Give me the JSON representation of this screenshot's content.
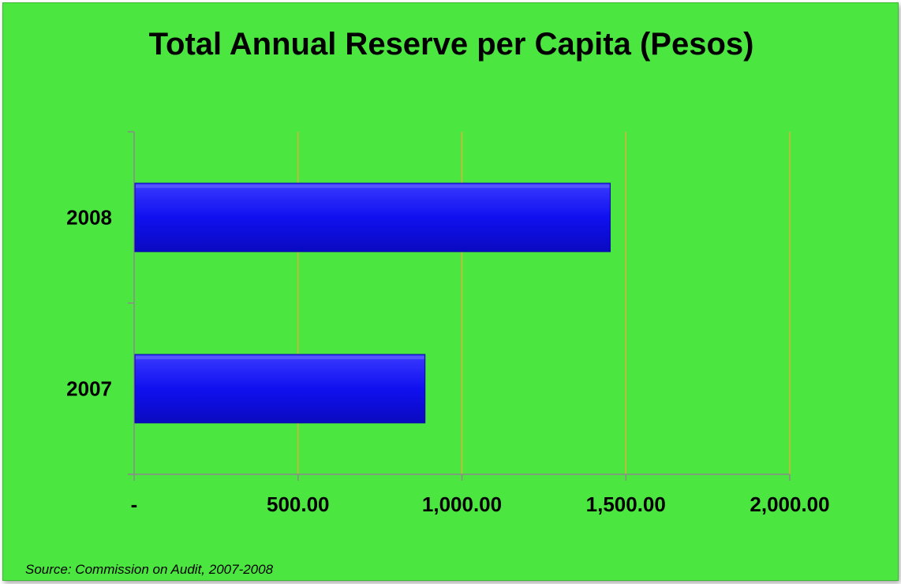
{
  "chart_data": {
    "type": "bar",
    "orientation": "horizontal",
    "title": "Total Annual Reserve per Capita (Pesos)",
    "categories": [
      "2008",
      "2007"
    ],
    "values": [
      1450,
      885
    ],
    "xlim": [
      0,
      2000
    ],
    "x_ticks": [
      0,
      500,
      1000,
      1500,
      2000
    ],
    "x_tick_labels": [
      "-",
      "500.00",
      "1,000.00",
      "1,500.00",
      "2,000.00"
    ],
    "grid": true,
    "legend": "none",
    "source_note": "Source: Commission on Audit, 2007-2008",
    "colors": {
      "background": "#4ce640",
      "bar": "#1010f0",
      "bar_dark": "#0808a8",
      "gridline": "#d9b23a",
      "axis": "#8a8a8a"
    }
  }
}
